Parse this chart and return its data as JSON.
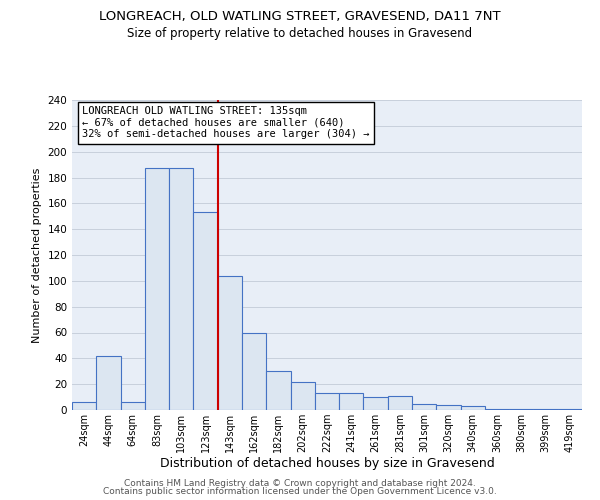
{
  "title1": "LONGREACH, OLD WATLING STREET, GRAVESEND, DA11 7NT",
  "title2": "Size of property relative to detached houses in Gravesend",
  "xlabel": "Distribution of detached houses by size in Gravesend",
  "ylabel": "Number of detached properties",
  "bar_labels": [
    "24sqm",
    "44sqm",
    "64sqm",
    "83sqm",
    "103sqm",
    "123sqm",
    "143sqm",
    "162sqm",
    "182sqm",
    "202sqm",
    "222sqm",
    "241sqm",
    "261sqm",
    "281sqm",
    "301sqm",
    "320sqm",
    "340sqm",
    "360sqm",
    "380sqm",
    "399sqm",
    "419sqm"
  ],
  "bar_values": [
    6,
    42,
    6,
    187,
    187,
    153,
    104,
    60,
    30,
    22,
    13,
    13,
    10,
    11,
    5,
    4,
    3,
    1,
    1,
    1,
    1
  ],
  "bar_color": "#dce6f1",
  "bar_edge_color": "#4472c4",
  "ylim": [
    0,
    240
  ],
  "yticks": [
    0,
    20,
    40,
    60,
    80,
    100,
    120,
    140,
    160,
    180,
    200,
    220,
    240
  ],
  "vline_x_idx": 6,
  "vline_color": "#cc0000",
  "annotation_title": "LONGREACH OLD WATLING STREET: 135sqm",
  "annotation_line1": "← 67% of detached houses are smaller (640)",
  "annotation_line2": "32% of semi-detached houses are larger (304) →",
  "footer1": "Contains HM Land Registry data © Crown copyright and database right 2024.",
  "footer2": "Contains public sector information licensed under the Open Government Licence v3.0.",
  "background_color": "#ffffff",
  "plot_bg_color": "#e8eef7",
  "grid_color": "#c8d0dc"
}
